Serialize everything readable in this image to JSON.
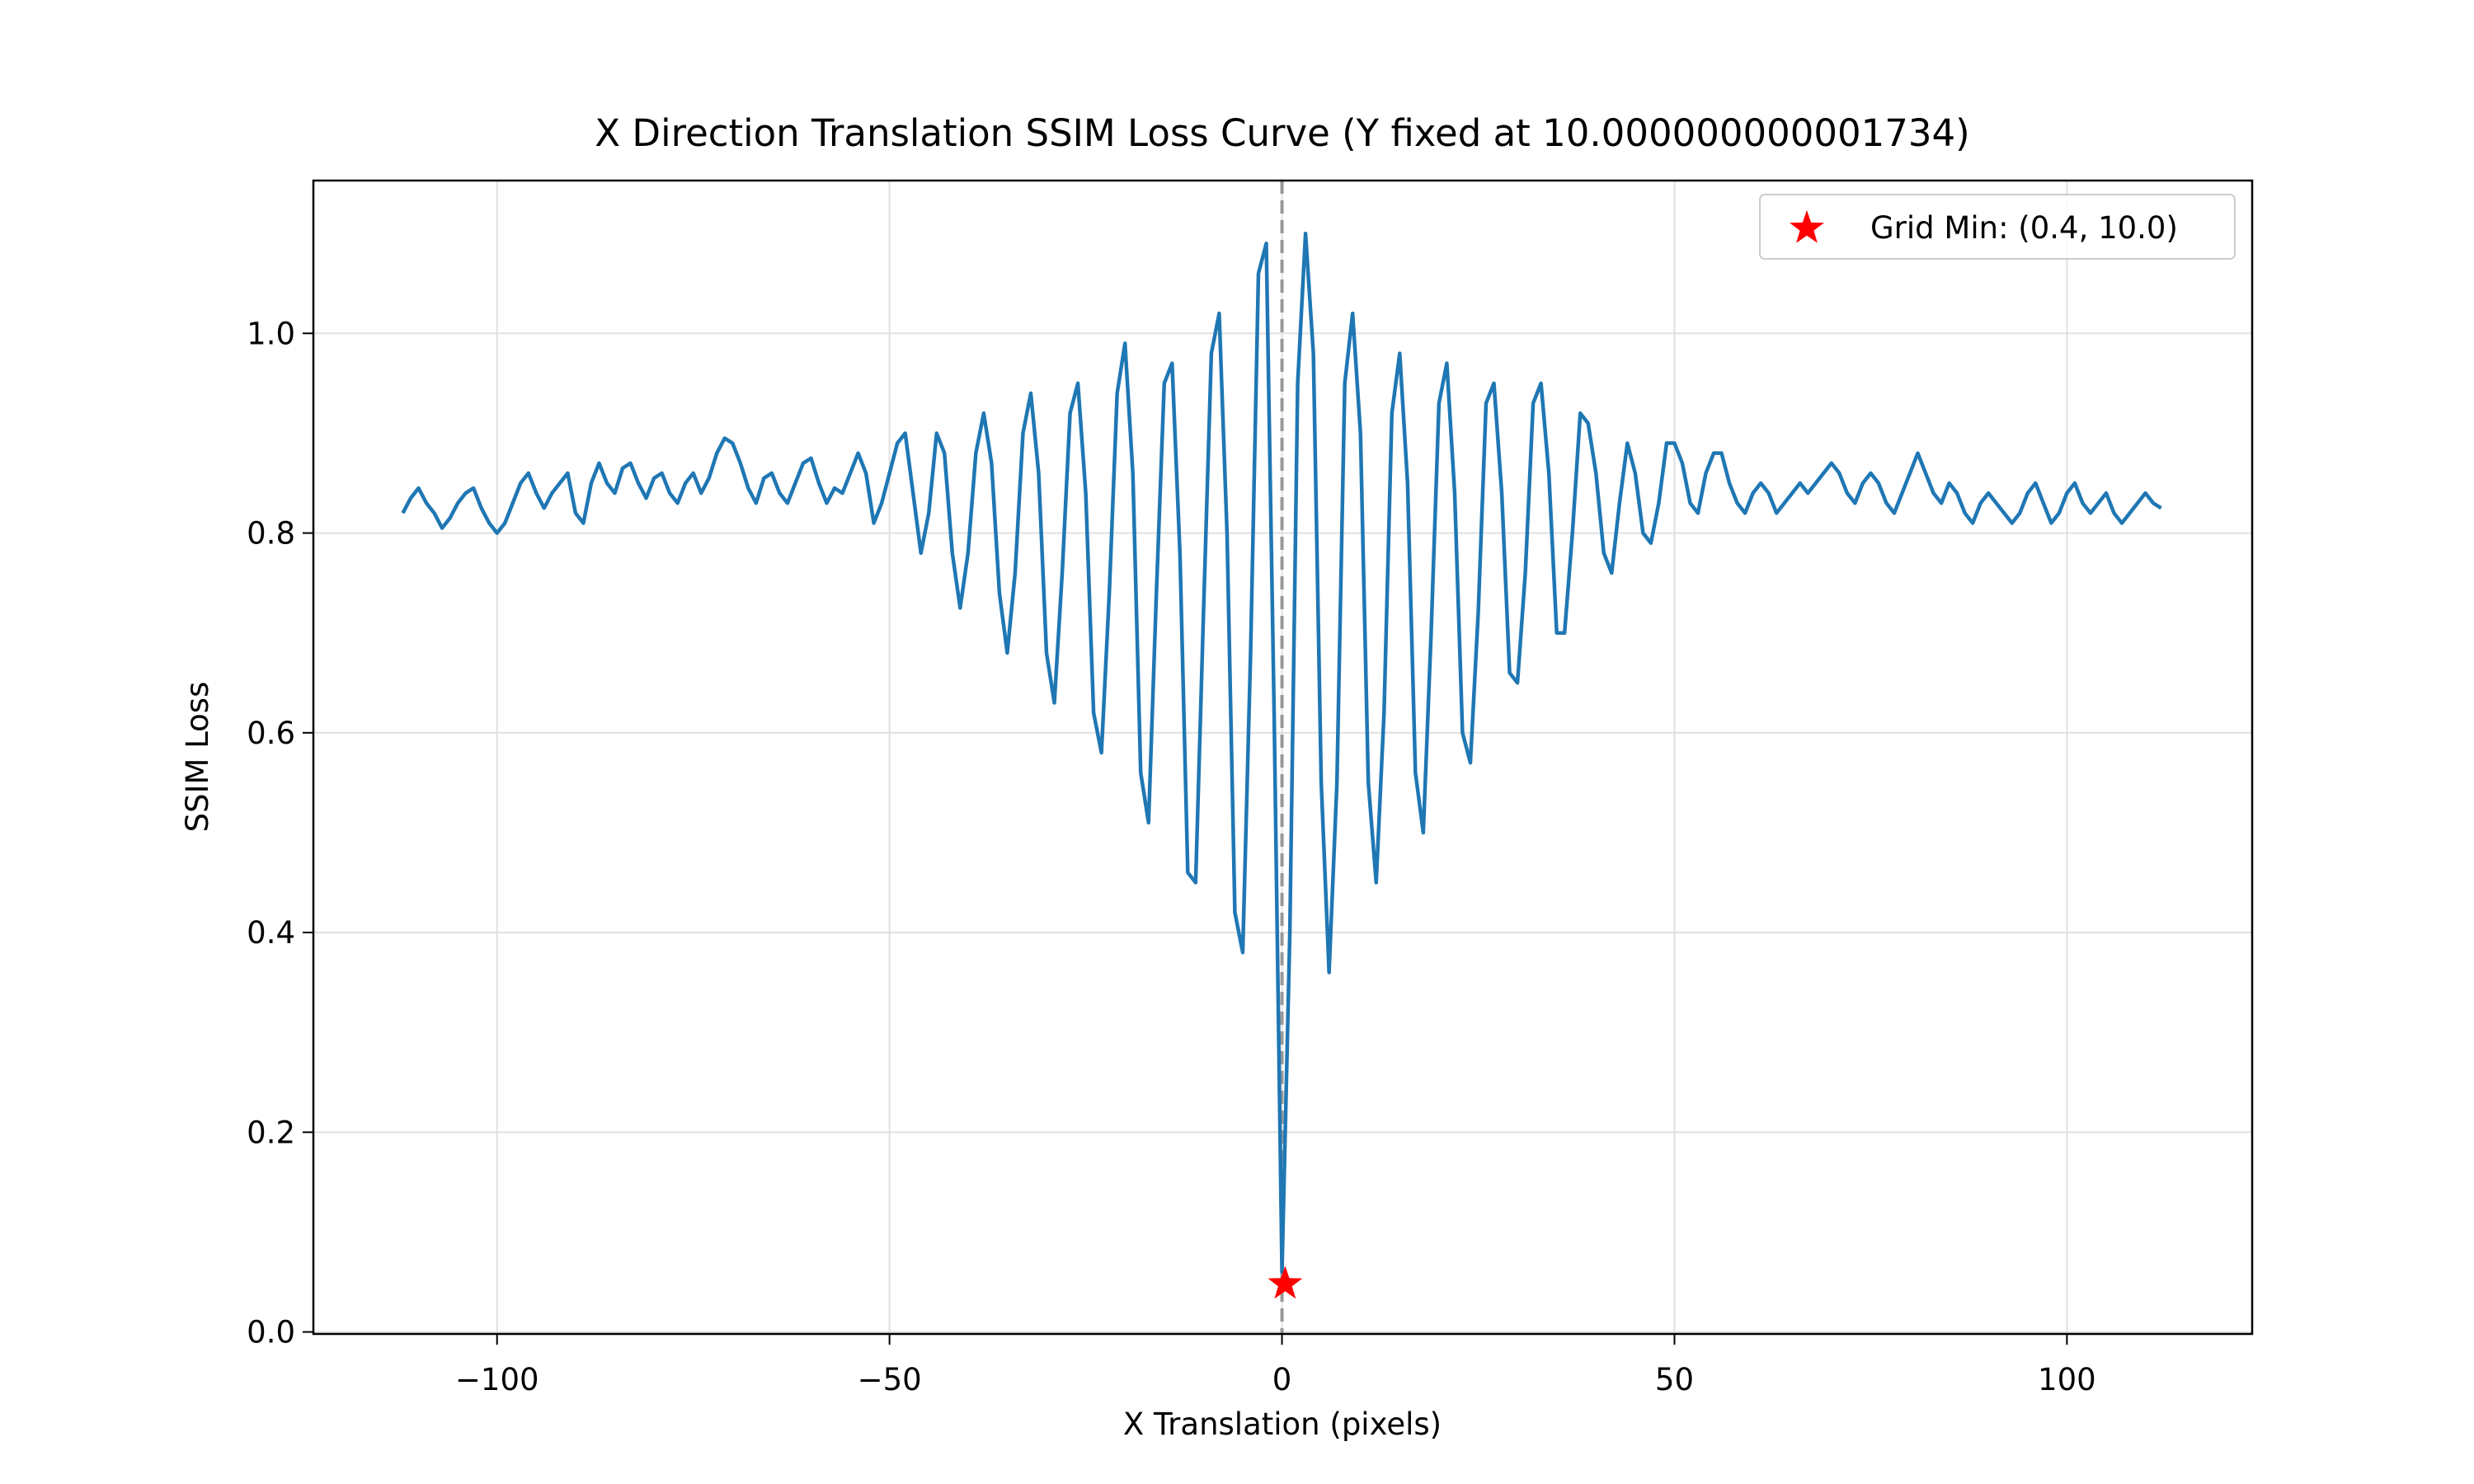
{
  "chart_data": {
    "type": "line",
    "title": "X Direction Translation SSIM Loss Curve (Y fixed at 10.000000000001734)",
    "xlabel": "X Translation (pixels)",
    "ylabel": "SSIM Loss",
    "x": [
      -112,
      -111,
      -110,
      -109,
      -108,
      -107,
      -106,
      -105,
      -104,
      -103,
      -102,
      -101,
      -100,
      -99,
      -98,
      -97,
      -96,
      -95,
      -94,
      -93,
      -92,
      -91,
      -90,
      -89,
      -88,
      -87,
      -86,
      -85,
      -84,
      -83,
      -82,
      -81,
      -80,
      -79,
      -78,
      -77,
      -76,
      -75,
      -74,
      -73,
      -72,
      -71,
      -70,
      -69,
      -68,
      -67,
      -66,
      -65,
      -64,
      -63,
      -62,
      -61,
      -60,
      -59,
      -58,
      -57,
      -56,
      -55,
      -54,
      -53,
      -52,
      -51,
      -50,
      -49,
      -48,
      -47,
      -46,
      -45,
      -44,
      -43,
      -42,
      -41,
      -40,
      -39,
      -38,
      -37,
      -36,
      -35,
      -34,
      -33,
      -32,
      -31,
      -30,
      -29,
      -28,
      -27,
      -26,
      -25,
      -24,
      -23,
      -22,
      -21,
      -20,
      -19,
      -18,
      -17,
      -16,
      -15,
      -14,
      -13,
      -12,
      -11,
      -10,
      -9,
      -8,
      -7,
      -6,
      -5,
      -4,
      -3,
      -2,
      -1,
      0,
      1,
      2,
      3,
      4,
      5,
      6,
      7,
      8,
      9,
      10,
      11,
      12,
      13,
      14,
      15,
      16,
      17,
      18,
      19,
      20,
      21,
      22,
      23,
      24,
      25,
      26,
      27,
      28,
      29,
      30,
      31,
      32,
      33,
      34,
      35,
      36,
      37,
      38,
      39,
      40,
      41,
      42,
      43,
      44,
      45,
      46,
      47,
      48,
      49,
      50,
      51,
      52,
      53,
      54,
      55,
      56,
      57,
      58,
      59,
      60,
      61,
      62,
      63,
      64,
      65,
      66,
      67,
      68,
      69,
      70,
      71,
      72,
      73,
      74,
      75,
      76,
      77,
      78,
      79,
      80,
      81,
      82,
      83,
      84,
      85,
      86,
      87,
      88,
      89,
      90,
      91,
      92,
      93,
      94,
      95,
      96,
      97,
      98,
      99,
      100,
      101,
      102,
      103,
      104,
      105,
      106,
      107,
      108,
      109,
      110,
      111,
      112
    ],
    "series": [
      {
        "name": "SSIM Loss",
        "color": "#1f77b4",
        "values": [
          0.82,
          0.835,
          0.845,
          0.83,
          0.82,
          0.805,
          0.815,
          0.83,
          0.84,
          0.845,
          0.825,
          0.81,
          0.8,
          0.81,
          0.83,
          0.85,
          0.86,
          0.84,
          0.825,
          0.84,
          0.85,
          0.86,
          0.82,
          0.81,
          0.85,
          0.87,
          0.85,
          0.84,
          0.865,
          0.87,
          0.85,
          0.835,
          0.855,
          0.86,
          0.84,
          0.83,
          0.85,
          0.86,
          0.84,
          0.855,
          0.88,
          0.895,
          0.89,
          0.87,
          0.845,
          0.83,
          0.855,
          0.86,
          0.84,
          0.83,
          0.85,
          0.87,
          0.875,
          0.85,
          0.83,
          0.845,
          0.84,
          0.86,
          0.88,
          0.86,
          0.81,
          0.83,
          0.86,
          0.89,
          0.9,
          0.84,
          0.78,
          0.82,
          0.9,
          0.88,
          0.78,
          0.725,
          0.78,
          0.88,
          0.92,
          0.87,
          0.74,
          0.68,
          0.76,
          0.9,
          0.94,
          0.86,
          0.68,
          0.63,
          0.76,
          0.92,
          0.95,
          0.84,
          0.62,
          0.58,
          0.74,
          0.94,
          0.99,
          0.86,
          0.56,
          0.51,
          0.74,
          0.95,
          0.97,
          0.78,
          0.46,
          0.45,
          0.72,
          0.98,
          1.02,
          0.8,
          0.42,
          0.38,
          0.68,
          1.06,
          1.09,
          0.62,
          0.06,
          0.4,
          0.95,
          1.1,
          0.98,
          0.55,
          0.36,
          0.55,
          0.95,
          1.02,
          0.9,
          0.55,
          0.45,
          0.62,
          0.92,
          0.98,
          0.85,
          0.56,
          0.5,
          0.7,
          0.93,
          0.97,
          0.84,
          0.6,
          0.57,
          0.72,
          0.93,
          0.95,
          0.84,
          0.66,
          0.65,
          0.76,
          0.93,
          0.95,
          0.86,
          0.7,
          0.7,
          0.8,
          0.92,
          0.91,
          0.86,
          0.78,
          0.76,
          0.83,
          0.89,
          0.86,
          0.8,
          0.79,
          0.83,
          0.89,
          0.89,
          0.87,
          0.83,
          0.82,
          0.86,
          0.88,
          0.88,
          0.85,
          0.83,
          0.82,
          0.84,
          0.85,
          0.84,
          0.82,
          0.83,
          0.84,
          0.85,
          0.84,
          0.85,
          0.86,
          0.87,
          0.86,
          0.84,
          0.83,
          0.85,
          0.86,
          0.85,
          0.83,
          0.82,
          0.84,
          0.86,
          0.88,
          0.86,
          0.84,
          0.83,
          0.85,
          0.84,
          0.82,
          0.81,
          0.83,
          0.84,
          0.83,
          0.82,
          0.81,
          0.82,
          0.84,
          0.85,
          0.83,
          0.81,
          0.82,
          0.84,
          0.85,
          0.83,
          0.82,
          0.83,
          0.84,
          0.82,
          0.81,
          0.82,
          0.83,
          0.84,
          0.83,
          0.825
        ]
      }
    ],
    "marker": {
      "name": "Grid Min: (0.4, 10.0)",
      "x": 0.4,
      "y": 0.048,
      "color": "#ff0000"
    },
    "vline": {
      "x": 0,
      "color": "#999999"
    },
    "xlim": [
      -123.4,
      123.6
    ],
    "ylim": [
      -0.002,
      1.153
    ],
    "xticks": [
      {
        "value": -100,
        "label": "−100"
      },
      {
        "value": -50,
        "label": "−50"
      },
      0,
      50,
      100
    ],
    "yticks": [
      {
        "value": 0,
        "label": "0.0"
      },
      0.2,
      0.4,
      0.6,
      0.8,
      {
        "value": 1,
        "label": "1.0"
      }
    ],
    "grid": true,
    "legend": "upper right"
  }
}
